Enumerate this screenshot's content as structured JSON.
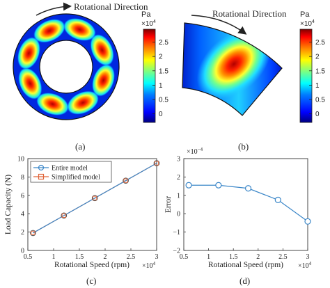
{
  "colors": {
    "series_entire": "#3a86c8",
    "series_simplified": "#e0653a",
    "error_line": "#3a86c8",
    "axis": "#333333"
  },
  "colormap": [
    "#00007f",
    "#0000ff",
    "#007fff",
    "#00ffff",
    "#7fff7f",
    "#ffff00",
    "#ff7f00",
    "#ff0000",
    "#7f0000"
  ],
  "panels": {
    "a": {
      "label": "(a)",
      "direction_label": "Rotational Direction",
      "colorbar": {
        "unit": "Pa",
        "multiplier": "×10",
        "multiplier_exp": "4",
        "ticks": [
          "2.5",
          "2",
          "1.5",
          "1",
          "0.5",
          "0"
        ],
        "range": [
          -0.3,
          2.95
        ]
      }
    },
    "b": {
      "label": "(b)",
      "direction_label": "Rotational Direction",
      "colorbar": {
        "unit": "Pa",
        "multiplier": "×10",
        "multiplier_exp": "4",
        "ticks": [
          "2.5",
          "2",
          "1.5",
          "1",
          "0.5",
          "0"
        ],
        "range": [
          -0.3,
          2.95
        ]
      }
    },
    "c": {
      "label": "(c)",
      "xlabel": "Rotational Speed (rpm)",
      "ylabel": "Load Capacity (N)",
      "x_multiplier": "×10",
      "x_multiplier_exp": "4",
      "xticks": [
        "0.5",
        "1",
        "1.5",
        "2",
        "2.5",
        "3"
      ],
      "yticks": [
        "0",
        "2",
        "4",
        "6",
        "8",
        "10"
      ],
      "legend": [
        "Entire model",
        "Simplified model"
      ]
    },
    "d": {
      "label": "(d)",
      "xlabel": "Rotational Speed (rpm)",
      "ylabel": "Error",
      "y_multiplier": "×10",
      "y_multiplier_exp": "−4",
      "x_multiplier": "×10",
      "x_multiplier_exp": "4",
      "xticks": [
        "0.5",
        "1",
        "1.5",
        "2",
        "2.5",
        "3"
      ],
      "yticks": [
        "3",
        "2",
        "1",
        "0",
        "−1",
        "−2"
      ]
    }
  },
  "chart_data": [
    {
      "type": "line",
      "panel": "c",
      "xlabel": "Rotational Speed (rpm)",
      "ylabel": "Load Capacity (N)",
      "x_scale": "×10^4",
      "xlim": [
        0.5,
        3.0
      ],
      "ylim": [
        0,
        10
      ],
      "grid": false,
      "legend_position": "top-left",
      "x": [
        0.6,
        1.2,
        1.8,
        2.4,
        3.0
      ],
      "series": [
        {
          "name": "Entire model",
          "values": [
            1.9,
            3.8,
            5.7,
            7.6,
            9.5
          ],
          "marker": "circle"
        },
        {
          "name": "Simplified model",
          "values": [
            1.9,
            3.8,
            5.7,
            7.6,
            9.5
          ],
          "marker": "square"
        }
      ]
    },
    {
      "type": "line",
      "panel": "d",
      "xlabel": "Rotational Speed (rpm)",
      "ylabel": "Error",
      "x_scale": "×10^4",
      "y_scale": "×10^-4",
      "xlim": [
        0.5,
        3.0
      ],
      "ylim": [
        -2,
        3
      ],
      "grid": false,
      "x": [
        0.6,
        1.2,
        1.8,
        2.4,
        3.0
      ],
      "series": [
        {
          "values": [
            1.55,
            1.55,
            1.38,
            0.75,
            -0.42
          ],
          "marker": "circle"
        }
      ]
    },
    {
      "type": "heatmap",
      "panel": "a",
      "unit": "Pa",
      "scale": "×10^4",
      "colorbar_ticks": [
        0,
        0.5,
        1,
        1.5,
        2,
        2.5
      ],
      "pressure_peaks": 8,
      "peak_value": 2.8
    },
    {
      "type": "heatmap",
      "panel": "b",
      "unit": "Pa",
      "scale": "×10^4",
      "colorbar_ticks": [
        0,
        0.5,
        1,
        1.5,
        2,
        2.5
      ],
      "pressure_peaks": 1,
      "peak_value": 2.8
    }
  ]
}
